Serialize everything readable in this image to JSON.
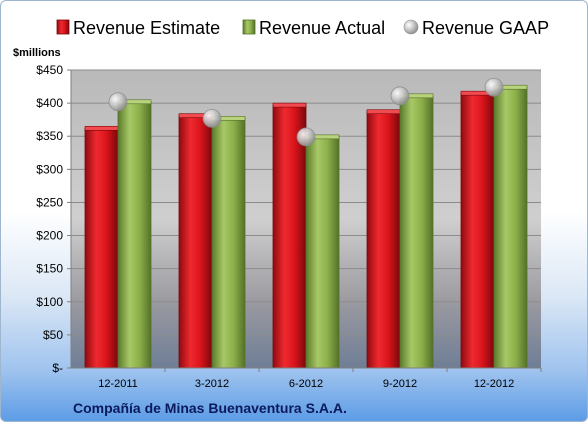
{
  "chart_data": {
    "type": "bar",
    "unit_label": "$millions",
    "company": "Compañía de Minas Buenaventura S.A.A.",
    "categories": [
      "12-2011",
      "3-2012",
      "6-2012",
      "9-2012",
      "12-2012"
    ],
    "y_ticks": [
      "$450",
      "$400",
      "$350",
      "$300",
      "$250",
      "$200",
      "$150",
      "$100",
      "$50",
      "$-"
    ],
    "ylim": [
      0,
      450
    ],
    "grid": true,
    "legend_position": "top",
    "series": [
      {
        "name": "Revenue Estimate",
        "kind": "bar",
        "color": "#d9141b",
        "values": [
          362,
          381,
          397,
          387,
          415
        ]
      },
      {
        "name": "Revenue Actual",
        "kind": "bar",
        "color": "#8db04a",
        "values": [
          402,
          377,
          349,
          411,
          424
        ]
      },
      {
        "name": "Revenue GAAP",
        "kind": "marker",
        "color": "#b9b9b9",
        "values": [
          402,
          377,
          349,
          411,
          424
        ]
      }
    ]
  }
}
